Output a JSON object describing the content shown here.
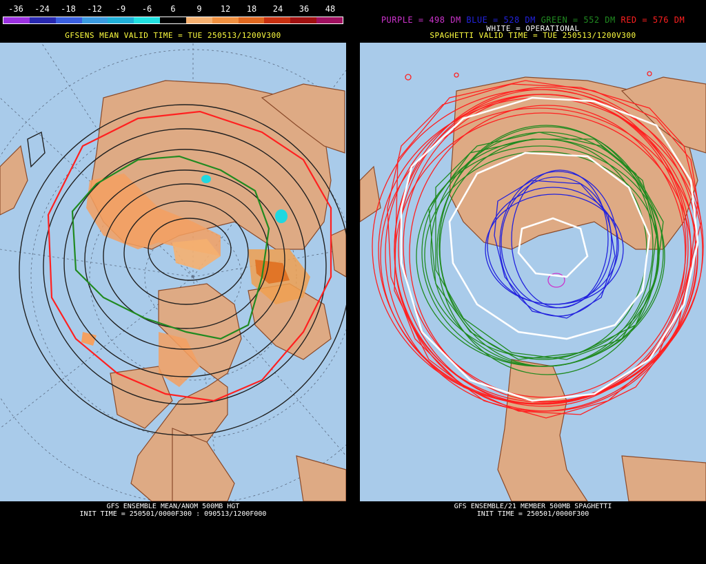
{
  "left": {
    "colorbar": {
      "labels": [
        "-36",
        "-24",
        "-18",
        "-12",
        "-9",
        "-6",
        "6",
        "9",
        "12",
        "18",
        "24",
        "36",
        "48"
      ],
      "colors": [
        "#9b30e0",
        "#2828b0",
        "#3a5fe0",
        "#3a9ae0",
        "#20b0d8",
        "#20e0e0",
        "#000000",
        "#f5b070",
        "#f09040",
        "#e06820",
        "#c83010",
        "#a01010",
        "#a01060"
      ]
    },
    "valid_time": "GFSENS MEAN VALID TIME = TUE 250513/1200V300",
    "footer_title": "GFS ENSEMBLE MEAN/ANOM 500MB HGT",
    "footer_init": "INIT TIME = 250501/0000F300 : 090513/1200F000"
  },
  "right": {
    "legend": {
      "purple": "PURPLE = 498 DM",
      "blue": "BLUE = 528 DM",
      "green": "GREEN = 552 DM",
      "red": "RED = 576 DM",
      "white": "WHITE = OPERATIONAL"
    },
    "valid_time": "SPAGHETTI VALID TIME = TUE 250513/1200V300",
    "footer_title": "GFS ENSEMBLE/21 MEMBER 500MB SPAGHETTI",
    "footer_init": "INIT TIME = 250501/0000F300"
  },
  "colors": {
    "ocean": "#a9cbea",
    "land": "#deaa84",
    "border": "#8a4a2a",
    "purple": "#cc33cc",
    "blue": "#2222dd",
    "green": "#208a20",
    "red": "#ff2020",
    "white": "#ffffff",
    "yellow": "#ffff40"
  }
}
